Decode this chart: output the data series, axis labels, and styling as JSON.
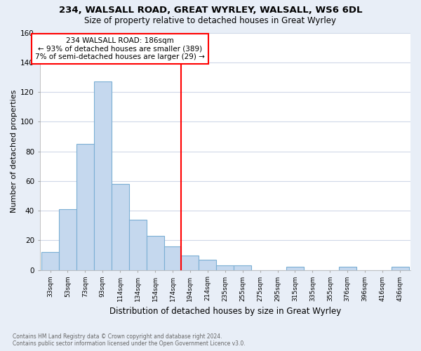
{
  "title1": "234, WALSALL ROAD, GREAT WYRLEY, WALSALL, WS6 6DL",
  "title2": "Size of property relative to detached houses in Great Wyrley",
  "xlabel": "Distribution of detached houses by size in Great Wyrley",
  "ylabel": "Number of detached properties",
  "categories": [
    "33sqm",
    "53sqm",
    "73sqm",
    "93sqm",
    "114sqm",
    "134sqm",
    "154sqm",
    "174sqm",
    "194sqm",
    "214sqm",
    "235sqm",
    "255sqm",
    "275sqm",
    "295sqm",
    "315sqm",
    "335sqm",
    "355sqm",
    "376sqm",
    "396sqm",
    "416sqm",
    "436sqm"
  ],
  "values": [
    12,
    41,
    85,
    127,
    58,
    34,
    23,
    16,
    10,
    7,
    3,
    3,
    0,
    0,
    2,
    0,
    0,
    2,
    0,
    0,
    2
  ],
  "bar_color": "#c5d8ee",
  "bar_edge_color": "#7bafd4",
  "annotation_line1": "234 WALSALL ROAD: 186sqm",
  "annotation_line2": "← 93% of detached houses are smaller (389)",
  "annotation_line3": "7% of semi-detached houses are larger (29) →",
  "ylim": [
    0,
    160
  ],
  "yticks": [
    0,
    20,
    40,
    60,
    80,
    100,
    120,
    140,
    160
  ],
  "figure_bg": "#e8eef7",
  "plot_bg": "#ffffff",
  "grid_color": "#d0d8e8",
  "footnote1": "Contains HM Land Registry data © Crown copyright and database right 2024.",
  "footnote2": "Contains public sector information licensed under the Open Government Licence v3.0."
}
